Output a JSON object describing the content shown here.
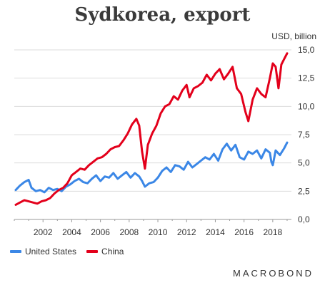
{
  "chart_data": {
    "type": "line",
    "title": "Sydkorea, export",
    "unit_label": "USD, billion",
    "xlabel": "",
    "ylabel": "",
    "xlim": [
      2000.0,
      2019.3
    ],
    "ylim": [
      0,
      15
    ],
    "x_ticks": [
      "2002",
      "2004",
      "2006",
      "2008",
      "2010",
      "2012",
      "2014",
      "2016",
      "2018"
    ],
    "x_tick_values": [
      2002,
      2004,
      2006,
      2008,
      2010,
      2012,
      2014,
      2016,
      2018
    ],
    "y_ticks": [
      "0,0",
      "2,5",
      "5,0",
      "7,5",
      "10,0",
      "12,5",
      "15,0"
    ],
    "y_tick_values": [
      0,
      2.5,
      5,
      7.5,
      10,
      12.5,
      15
    ],
    "grid": "horizontal",
    "legend_position": "bottom-left",
    "series": [
      {
        "name": "United States",
        "color": "#3b87e6",
        "points": [
          [
            2000.1,
            2.6
          ],
          [
            2000.4,
            3.0
          ],
          [
            2000.7,
            3.3
          ],
          [
            2001.0,
            3.5
          ],
          [
            2001.2,
            2.8
          ],
          [
            2001.5,
            2.5
          ],
          [
            2001.8,
            2.6
          ],
          [
            2002.1,
            2.4
          ],
          [
            2002.4,
            2.8
          ],
          [
            2002.7,
            2.6
          ],
          [
            2003.0,
            2.7
          ],
          [
            2003.3,
            2.5
          ],
          [
            2003.6,
            2.9
          ],
          [
            2003.9,
            3.1
          ],
          [
            2004.2,
            3.4
          ],
          [
            2004.5,
            3.6
          ],
          [
            2004.8,
            3.3
          ],
          [
            2005.1,
            3.2
          ],
          [
            2005.4,
            3.6
          ],
          [
            2005.7,
            3.9
          ],
          [
            2006.0,
            3.4
          ],
          [
            2006.3,
            3.8
          ],
          [
            2006.6,
            3.7
          ],
          [
            2006.9,
            4.1
          ],
          [
            2007.2,
            3.6
          ],
          [
            2007.5,
            3.9
          ],
          [
            2007.8,
            4.2
          ],
          [
            2008.1,
            3.7
          ],
          [
            2008.4,
            4.1
          ],
          [
            2008.7,
            3.8
          ],
          [
            2008.9,
            3.4
          ],
          [
            2009.1,
            2.9
          ],
          [
            2009.4,
            3.2
          ],
          [
            2009.7,
            3.3
          ],
          [
            2010.0,
            3.7
          ],
          [
            2010.3,
            4.3
          ],
          [
            2010.6,
            4.6
          ],
          [
            2010.9,
            4.2
          ],
          [
            2011.2,
            4.8
          ],
          [
            2011.5,
            4.7
          ],
          [
            2011.8,
            4.4
          ],
          [
            2012.1,
            5.1
          ],
          [
            2012.4,
            4.6
          ],
          [
            2012.7,
            4.9
          ],
          [
            2013.0,
            5.2
          ],
          [
            2013.3,
            5.5
          ],
          [
            2013.6,
            5.3
          ],
          [
            2013.9,
            5.8
          ],
          [
            2014.2,
            5.2
          ],
          [
            2014.5,
            6.2
          ],
          [
            2014.8,
            6.7
          ],
          [
            2015.1,
            6.1
          ],
          [
            2015.4,
            6.6
          ],
          [
            2015.7,
            5.5
          ],
          [
            2016.0,
            5.3
          ],
          [
            2016.3,
            6.0
          ],
          [
            2016.6,
            5.8
          ],
          [
            2016.9,
            6.1
          ],
          [
            2017.2,
            5.4
          ],
          [
            2017.5,
            6.2
          ],
          [
            2017.8,
            5.9
          ],
          [
            2017.9,
            5.1
          ],
          [
            2018.0,
            4.8
          ],
          [
            2018.2,
            6.1
          ],
          [
            2018.5,
            5.7
          ],
          [
            2018.8,
            6.3
          ],
          [
            2019.0,
            6.8
          ]
        ]
      },
      {
        "name": "China",
        "color": "#e3001b",
        "points": [
          [
            2000.1,
            1.3
          ],
          [
            2000.4,
            1.5
          ],
          [
            2000.7,
            1.7
          ],
          [
            2001.0,
            1.6
          ],
          [
            2001.3,
            1.5
          ],
          [
            2001.6,
            1.4
          ],
          [
            2001.9,
            1.6
          ],
          [
            2002.2,
            1.7
          ],
          [
            2002.5,
            1.9
          ],
          [
            2002.8,
            2.3
          ],
          [
            2003.1,
            2.6
          ],
          [
            2003.4,
            2.8
          ],
          [
            2003.7,
            3.2
          ],
          [
            2004.0,
            3.9
          ],
          [
            2004.3,
            4.2
          ],
          [
            2004.6,
            4.5
          ],
          [
            2004.9,
            4.4
          ],
          [
            2005.2,
            4.8
          ],
          [
            2005.5,
            5.1
          ],
          [
            2005.8,
            5.4
          ],
          [
            2006.1,
            5.5
          ],
          [
            2006.4,
            5.8
          ],
          [
            2006.7,
            6.2
          ],
          [
            2007.0,
            6.4
          ],
          [
            2007.3,
            6.5
          ],
          [
            2007.6,
            7.0
          ],
          [
            2007.9,
            7.6
          ],
          [
            2008.2,
            8.4
          ],
          [
            2008.5,
            8.9
          ],
          [
            2008.7,
            8.3
          ],
          [
            2008.9,
            6.0
          ],
          [
            2009.1,
            4.5
          ],
          [
            2009.3,
            6.6
          ],
          [
            2009.6,
            7.6
          ],
          [
            2009.9,
            8.3
          ],
          [
            2010.2,
            9.4
          ],
          [
            2010.5,
            10.0
          ],
          [
            2010.8,
            10.2
          ],
          [
            2011.1,
            10.9
          ],
          [
            2011.4,
            10.6
          ],
          [
            2011.7,
            11.4
          ],
          [
            2012.0,
            11.9
          ],
          [
            2012.2,
            10.8
          ],
          [
            2012.5,
            11.6
          ],
          [
            2012.8,
            11.8
          ],
          [
            2013.1,
            12.1
          ],
          [
            2013.4,
            12.8
          ],
          [
            2013.7,
            12.3
          ],
          [
            2014.0,
            12.9
          ],
          [
            2014.3,
            13.3
          ],
          [
            2014.6,
            12.4
          ],
          [
            2014.9,
            12.9
          ],
          [
            2015.2,
            13.5
          ],
          [
            2015.5,
            11.6
          ],
          [
            2015.8,
            11.1
          ],
          [
            2016.1,
            9.5
          ],
          [
            2016.3,
            8.7
          ],
          [
            2016.6,
            10.6
          ],
          [
            2016.9,
            11.6
          ],
          [
            2017.2,
            11.1
          ],
          [
            2017.5,
            10.8
          ],
          [
            2017.8,
            12.5
          ],
          [
            2018.0,
            13.8
          ],
          [
            2018.2,
            13.5
          ],
          [
            2018.4,
            11.6
          ],
          [
            2018.6,
            13.7
          ],
          [
            2018.8,
            14.2
          ],
          [
            2019.0,
            14.7
          ]
        ]
      }
    ]
  },
  "legend": {
    "items": [
      {
        "label": "United States",
        "color": "#3b87e6"
      },
      {
        "label": "China",
        "color": "#e3001b"
      }
    ]
  },
  "branding": {
    "logo_text": "MACROBOND"
  }
}
